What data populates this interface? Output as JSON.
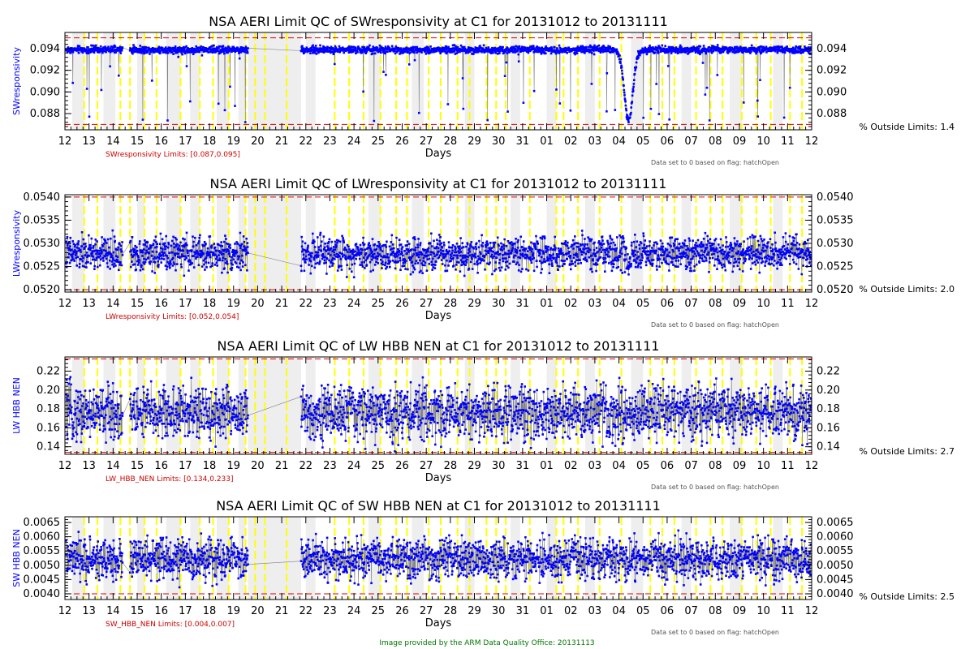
{
  "colors": {
    "data": "#0000ff",
    "trace": "#808080",
    "limit": "#dd0000",
    "flag_line": "#ffff00",
    "flag_band": "#eeeeee",
    "credit": "#007700"
  },
  "credit": "Image provided by the ARM Data Quality Office: 20131113",
  "xaxis": {
    "label": "Days",
    "tick_labels": [
      "12",
      "13",
      "14",
      "15",
      "16",
      "17",
      "18",
      "19",
      "20",
      "21",
      "22",
      "23",
      "24",
      "25",
      "26",
      "27",
      "28",
      "29",
      "30",
      "31",
      "01",
      "02",
      "03",
      "04",
      "05",
      "06",
      "07",
      "08",
      "09",
      "10",
      "11",
      "12"
    ],
    "range": [
      0,
      31
    ]
  },
  "flag_marks": [
    0.8,
    1.35,
    2.3,
    2.7,
    3.3,
    3.8,
    4.8,
    5.6,
    6.15,
    6.8,
    7.5,
    7.9,
    8.3,
    9.2,
    11.2,
    11.8,
    12.4,
    13.1,
    13.75,
    14.2,
    15.1,
    15.6,
    16.3,
    16.8,
    17.5,
    17.9,
    18.3,
    19.3,
    20.4,
    20.7,
    21.3,
    22.2,
    23.1,
    24.3,
    24.8,
    25.3,
    26.2,
    26.8,
    27.3,
    28.1,
    28.7,
    29.3,
    30.1,
    30.6
  ],
  "flag_bands": [
    [
      0.3,
      0.8
    ],
    [
      1.6,
      2.1
    ],
    [
      3.0,
      3.3
    ],
    [
      4.2,
      4.8
    ],
    [
      5.2,
      5.6
    ],
    [
      6.3,
      6.8
    ],
    [
      7.2,
      7.5
    ],
    [
      8.6,
      9.2
    ],
    [
      10.0,
      10.4
    ],
    [
      12.6,
      13.1
    ],
    [
      14.4,
      14.9
    ],
    [
      16.6,
      17.0
    ],
    [
      18.5,
      18.9
    ],
    [
      20.0,
      20.4
    ],
    [
      21.6,
      22.0
    ],
    [
      23.5,
      24.0
    ],
    [
      25.6,
      26.0
    ],
    [
      27.6,
      28.1
    ],
    [
      29.4,
      29.8
    ]
  ],
  "gap": {
    "x_start": 7.6,
    "x_end": 9.8
  },
  "chart_data": [
    {
      "type": "scatter",
      "title": "NSA AERI Limit QC of SWresponsivity at C1 for 20131012 to 20131111",
      "ylabel": "SWresponsivity",
      "ylim": [
        0.0865,
        0.0955
      ],
      "yticks": [
        0.088,
        0.09,
        0.092,
        0.094
      ],
      "ytick_labels": [
        "0.088",
        "0.090",
        "0.092",
        "0.094"
      ],
      "limits": [
        0.087,
        0.095
      ],
      "limits_text": "SWresponsivity Limits: [0.087,0.095]",
      "outside_text": "% Outside Limits: 1.4",
      "note": "Data set to 0 based on flag: hatchOpen",
      "baseline": 0.0939,
      "noise": 0.00025,
      "spike_low": 0.0872,
      "spike_prob": 0.03,
      "dip": {
        "center": 23.4,
        "width": 0.25,
        "depth": 0.0065
      }
    },
    {
      "type": "scatter",
      "title": "NSA AERI Limit QC of LWresponsivity at C1 for 20131012 to 20131111",
      "ylabel": "LWresponsivity",
      "ylim": [
        0.05195,
        0.05405
      ],
      "yticks": [
        0.052,
        0.0525,
        0.053,
        0.0535,
        0.054
      ],
      "ytick_labels": [
        "0.0520",
        "0.0525",
        "0.0530",
        "0.0535",
        "0.0540"
      ],
      "limits": [
        0.052,
        0.054
      ],
      "limits_text": "LWresponsivity Limits: [0.052,0.054]",
      "outside_text": "% Outside Limits: 2.0",
      "note": "Data set to 0 based on flag: hatchOpen",
      "baseline": 0.05278,
      "noise": 0.00028,
      "spike_low": 0.052,
      "spike_prob": 0.0,
      "dip": {
        "center": 23.4,
        "width": 0.15,
        "depth": 0.0003
      }
    },
    {
      "type": "scatter",
      "title": "NSA AERI Limit QC of LW HBB NEN at C1 for 20131012 to 20131111",
      "ylabel": "LW HBB NEN",
      "ylim": [
        0.132,
        0.235
      ],
      "yticks": [
        0.14,
        0.16,
        0.18,
        0.2,
        0.22
      ],
      "ytick_labels": [
        "0.14",
        "0.16",
        "0.18",
        "0.20",
        "0.22"
      ],
      "limits": [
        0.134,
        0.233
      ],
      "limits_text": "LW_HBB_NEN Limits: [0.134,0.233]",
      "outside_text": "% Outside Limits: 2.7",
      "note": "Data set to 0 based on flag: hatchOpen",
      "baseline": 0.176,
      "noise": 0.022,
      "spike_low": 0.14,
      "spike_prob": 0.0,
      "dip": null
    },
    {
      "type": "scatter",
      "title": "NSA AERI Limit QC of SW HBB NEN at C1 for 20131012 to 20131111",
      "ylabel": "SW HBB NEN",
      "ylim": [
        0.0038,
        0.0067
      ],
      "yticks": [
        0.004,
        0.0045,
        0.005,
        0.0055,
        0.006,
        0.0065
      ],
      "ytick_labels": [
        "0.0040",
        "0.0045",
        "0.0050",
        "0.0055",
        "0.0060",
        "0.0065"
      ],
      "limits": [
        0.004,
        0.007
      ],
      "limits_text": "SW_HBB_NEN Limits: [0.004,0.007]",
      "outside_text": "% Outside Limits: 2.5",
      "note": "Data set to 0 based on flag: hatchOpen",
      "baseline": 0.0052,
      "noise": 0.00055,
      "spike_low": 0.004,
      "spike_prob": 0.0,
      "dip": null
    }
  ]
}
